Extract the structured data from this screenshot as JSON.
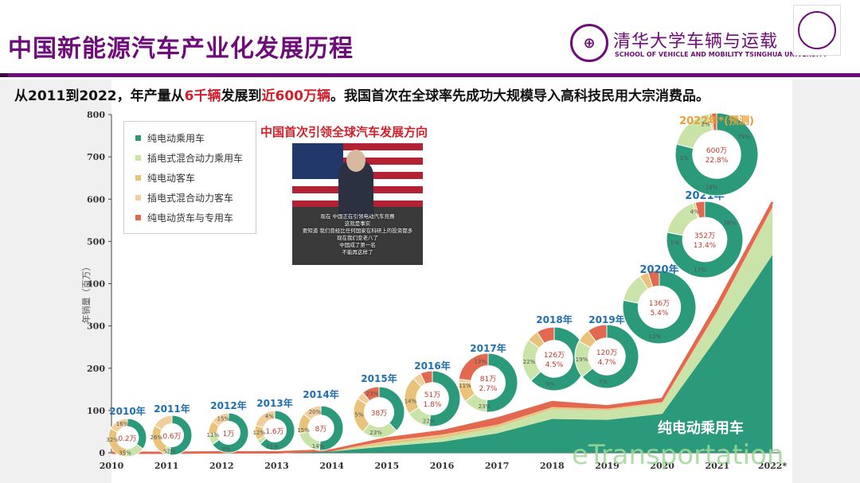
{
  "header": {
    "title": "中国新能源汽车产业化发展历程",
    "subtitle_pre": "从2011到2022，年产量从",
    "subtitle_red1": "6千辆",
    "subtitle_mid": "发展到",
    "subtitle_red2": "近600万辆",
    "subtitle_post": "。我国首次在全球率先成功大规模导入高科技民用大宗消费品。",
    "logo_cn": "清华大学车辆与运载",
    "logo_en": "SCHOOL OF VEHICLE AND MOBILITY TSINGHUA UNIVERSITY",
    "logo_icon": "tsinghua-vehicle-logo-icon",
    "seal_icon": "tsinghua-university-seal-icon"
  },
  "photo": {
    "title": "中国首次引领全球汽车发展方向",
    "captions": [
      "现在 中国正在引领电动汽车竞赛",
      "这就是事实",
      "要知道 我们曾经比任何国家在科研上的投资都多",
      "现在我们变老八了",
      "中国成了第一名",
      "不能再这样了"
    ]
  },
  "watermark": "eTransportation",
  "colors": {
    "purple": "#6e0d79",
    "red": "#d0202b",
    "bev_passenger": "#2a9a7a",
    "phev_passenger": "#c9e3a8",
    "bev_bus": "#e9c37a",
    "phev_bus": "#f2cf9a",
    "bev_truck": "#e2684f"
  },
  "chart_data": {
    "type": "area",
    "ylabel": "年销量（百万）",
    "ylim": [
      0,
      800
    ],
    "yticks": [
      "0",
      "100",
      "200",
      "300",
      "400",
      "500",
      "600",
      "700",
      "800"
    ],
    "categories": [
      "2010",
      "2011",
      "2012",
      "2013",
      "2014",
      "2015",
      "2016",
      "2017",
      "2018",
      "2019",
      "2020",
      "2021",
      "2022*"
    ],
    "series": [
      {
        "name": "纯电动乘用车",
        "values": [
          0,
          0,
          1,
          1,
          3,
          15,
          26,
          46,
          80,
          78,
          92,
          273,
          468
        ]
      },
      {
        "name": "插电式混合动力乘用车",
        "values": [
          0,
          0,
          0,
          0,
          1,
          6,
          9,
          14,
          23,
          22,
          25,
          60,
          110
        ]
      },
      {
        "name": "纯电动客车",
        "values": [
          0,
          0,
          0,
          0,
          1,
          5,
          6,
          5,
          4,
          3,
          2,
          2,
          2
        ]
      },
      {
        "name": "插电式混合动力客车",
        "values": [
          0,
          0,
          0,
          0,
          0,
          2,
          2,
          1,
          1,
          1,
          1,
          1,
          1
        ]
      },
      {
        "name": "纯电动货车与专用车",
        "values": [
          0,
          0,
          0,
          0,
          1,
          6,
          8,
          15,
          12,
          6,
          7,
          15,
          12
        ]
      }
    ],
    "legend": [
      "纯电动乘用车",
      "插电式混合动力乘用车",
      "纯电动客车",
      "插电式混合动力客车",
      "纯电动货车与专用车"
    ],
    "area_label": "纯电动乘用车",
    "donuts": [
      {
        "year": "2010年",
        "center": "0.2万",
        "share": "",
        "slices": [
          {
            "v": 35,
            "c": "bev_passenger"
          },
          {
            "v": 16,
            "c": "phev_passenger"
          },
          {
            "v": 32,
            "c": "bev_bus"
          },
          {
            "v": 17,
            "c": "phev_bus"
          }
        ],
        "labels": [
          "35%",
          "32%",
          "16%"
        ]
      },
      {
        "year": "2011年",
        "center": "0.6万",
        "share": "",
        "slices": [
          {
            "v": 52,
            "c": "bev_passenger"
          },
          {
            "v": 5,
            "c": "phev_passenger"
          },
          {
            "v": 26,
            "c": "bev_bus"
          },
          {
            "v": 17,
            "c": "phev_bus"
          }
        ],
        "labels": [
          "52%",
          "26%"
        ]
      },
      {
        "year": "2012年",
        "center": "1万",
        "share": "",
        "slices": [
          {
            "v": 65,
            "c": "bev_passenger"
          },
          {
            "v": 9,
            "c": "phev_passenger"
          },
          {
            "v": 11,
            "c": "bev_bus"
          },
          {
            "v": 15,
            "c": "phev_bus"
          }
        ],
        "labels": [
          "9%",
          "11%",
          "15%"
        ]
      },
      {
        "year": "2013年",
        "center": "1.6万",
        "share": "",
        "slices": [
          {
            "v": 63,
            "c": "bev_passenger"
          },
          {
            "v": 4,
            "c": "phev_passenger"
          },
          {
            "v": 12,
            "c": "bev_bus"
          },
          {
            "v": 21,
            "c": "phev_bus"
          }
        ],
        "labels": [
          "21%",
          "12%",
          "4%"
        ]
      },
      {
        "year": "2014年",
        "center": "8万",
        "share": "",
        "slices": [
          {
            "v": 51,
            "c": "bev_passenger"
          },
          {
            "v": 20,
            "c": "phev_passenger"
          },
          {
            "v": 15,
            "c": "bev_bus"
          },
          {
            "v": 14,
            "c": "phev_bus"
          }
        ],
        "labels": [
          "14%",
          "15%",
          "20%"
        ]
      },
      {
        "year": "2015年",
        "center": "38万",
        "share": "",
        "slices": [
          {
            "v": 38,
            "c": "bev_passenger"
          },
          {
            "v": 23,
            "c": "phev_passenger"
          },
          {
            "v": 23,
            "c": "bev_bus"
          },
          {
            "v": 5,
            "c": "phev_bus"
          },
          {
            "v": 11,
            "c": "bev_truck"
          }
        ],
        "labels": [
          "23%",
          "5%",
          "23%"
        ]
      },
      {
        "year": "2016年",
        "center": "51万",
        "share": "1.8%",
        "slices": [
          {
            "v": 52,
            "c": "bev_passenger"
          },
          {
            "v": 14,
            "c": "phev_passenger"
          },
          {
            "v": 22,
            "c": "bev_bus"
          },
          {
            "v": 5,
            "c": "phev_bus"
          },
          {
            "v": 7,
            "c": "bev_truck"
          }
        ],
        "labels": [
          "22%",
          "14%"
        ]
      },
      {
        "year": "2017年",
        "center": "81万",
        "share": "2.7%",
        "slices": [
          {
            "v": 51,
            "c": "bev_passenger"
          },
          {
            "v": 13,
            "c": "phev_passenger"
          },
          {
            "v": 11,
            "c": "bev_bus"
          },
          {
            "v": 2,
            "c": "phev_bus"
          },
          {
            "v": 23,
            "c": "bev_truck"
          }
        ],
        "labels": [
          "23%",
          "11%",
          "13%"
        ]
      },
      {
        "year": "2018年",
        "center": "126万",
        "share": "4.5%",
        "slices": [
          {
            "v": 63,
            "c": "bev_passenger"
          },
          {
            "v": 22,
            "c": "phev_passenger"
          },
          {
            "v": 6,
            "c": "bev_bus"
          },
          {
            "v": 9,
            "c": "bev_truck"
          }
        ],
        "labels": [
          "9%",
          "22%"
        ]
      },
      {
        "year": "2019年",
        "center": "120万",
        "share": "4.7%",
        "slices": [
          {
            "v": 64,
            "c": "bev_passenger"
          },
          {
            "v": 19,
            "c": "phev_passenger"
          },
          {
            "v": 7,
            "c": "bev_bus"
          },
          {
            "v": 10,
            "c": "bev_truck"
          }
        ],
        "labels": [
          "7%",
          "19%"
        ]
      },
      {
        "year": "2020年",
        "center": "136万",
        "share": "5.4%",
        "slices": [
          {
            "v": 78,
            "c": "bev_passenger"
          },
          {
            "v": 13,
            "c": "phev_passenger"
          },
          {
            "v": 4,
            "c": "bev_bus"
          },
          {
            "v": 5,
            "c": "bev_truck"
          }
        ],
        "labels": [
          "13%"
        ]
      },
      {
        "year": "2021年",
        "center": "352万",
        "share": "13.4%",
        "slices": [
          {
            "v": 78,
            "c": "bev_passenger"
          },
          {
            "v": 17,
            "c": "phev_passenger"
          },
          {
            "v": 1,
            "c": "bev_bus"
          },
          {
            "v": 4,
            "c": "bev_truck"
          }
        ],
        "labels": [
          "17%",
          "1%",
          "4%",
          "78%"
        ]
      },
      {
        "year": "2022年*(预测)",
        "center": "600万",
        "share": "22.8%",
        "slices": [
          {
            "v": 79,
            "c": "bev_passenger"
          },
          {
            "v": 18,
            "c": "phev_passenger"
          },
          {
            "v": 1,
            "c": "bev_bus"
          },
          {
            "v": 2,
            "c": "bev_truck"
          }
        ],
        "labels": [
          "18%",
          "1%",
          "2%",
          "79%"
        ]
      }
    ]
  }
}
